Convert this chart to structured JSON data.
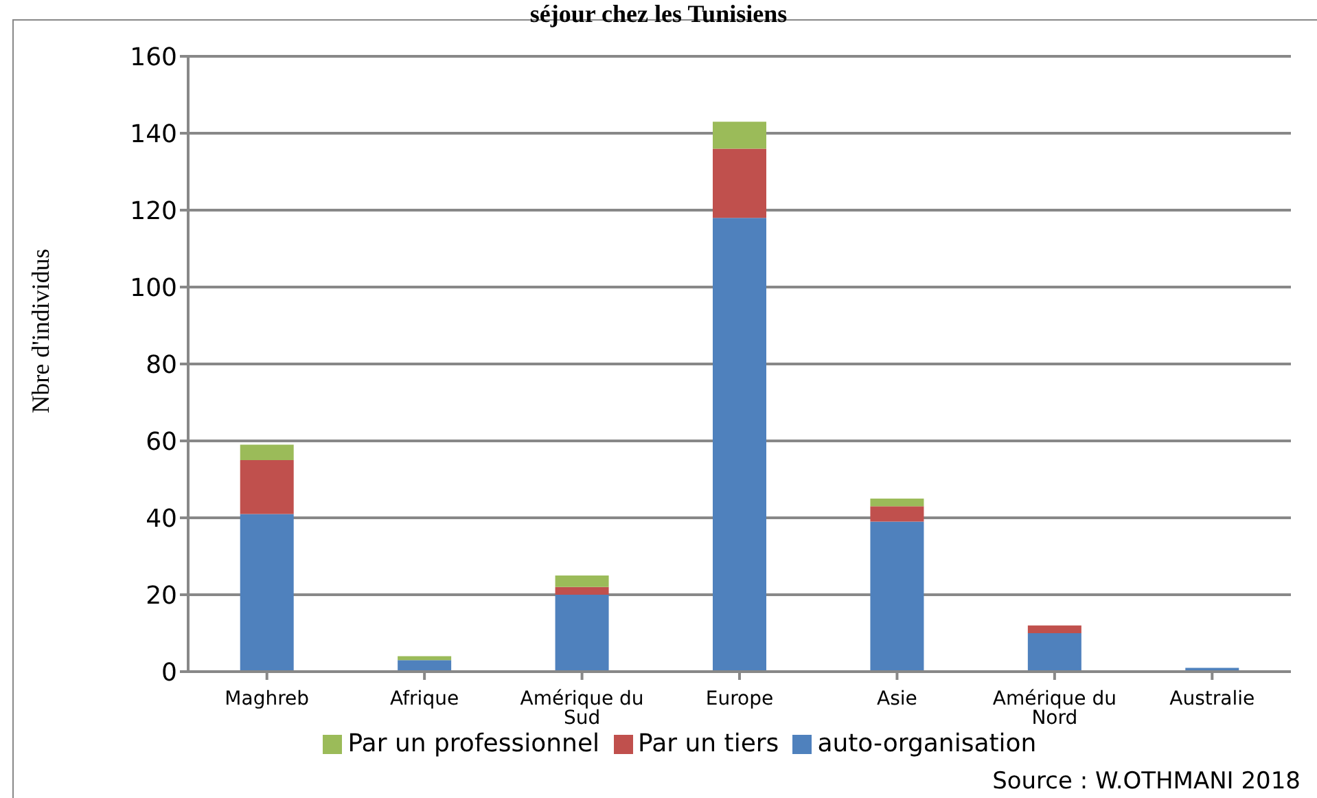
{
  "chart_data": {
    "type": "bar",
    "title": "séjour chez les Tunisiens",
    "ylabel": "Nbre d'individus",
    "stacked": true,
    "categories": [
      "Maghreb",
      "Afrique",
      "Amérique du Sud",
      "Europe",
      "Asie",
      "Amérique du Nord",
      "Australie"
    ],
    "series": [
      {
        "name": "auto-organisation",
        "color": "#4f81bd",
        "values": [
          41,
          3,
          20,
          118,
          39,
          10,
          1
        ]
      },
      {
        "name": "Par un tiers",
        "color": "#c0504d",
        "values": [
          14,
          0,
          2,
          18,
          4,
          2,
          0
        ]
      },
      {
        "name": "Par un professionnel",
        "color": "#9bbb59",
        "values": [
          4,
          1,
          3,
          7,
          2,
          0,
          0
        ]
      }
    ],
    "ylim": [
      0,
      160
    ],
    "yticks": [
      0,
      20,
      40,
      60,
      80,
      100,
      120,
      140,
      160
    ],
    "grid": "y",
    "legend": "bottom",
    "annotations": [
      "Source : W.OTHMANI 2018"
    ]
  }
}
